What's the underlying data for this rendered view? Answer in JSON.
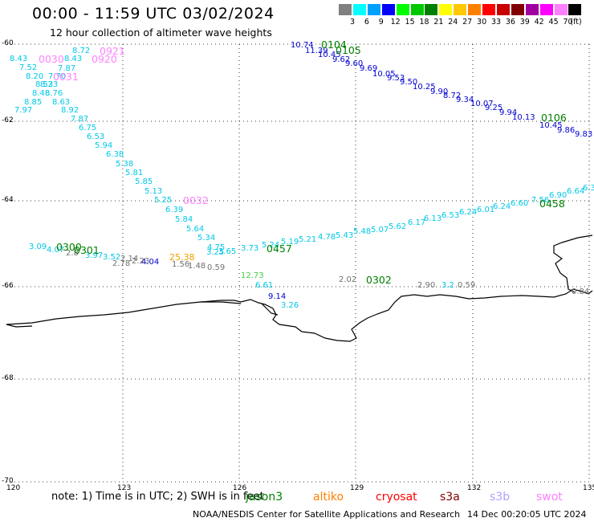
{
  "title": "00:00 - 11:59 UTC 03/02/2024",
  "subtitle": "12 hour collection of altimeter wave heights",
  "colorbar": {
    "unit": "(ft)",
    "levels": [
      {
        "label": "3",
        "color": "#808080"
      },
      {
        "label": "6",
        "color": "#00ffff"
      },
      {
        "label": "9",
        "color": "#00a0ff"
      },
      {
        "label": "12",
        "color": "#0000ff"
      },
      {
        "label": "15",
        "color": "#00ff00"
      },
      {
        "label": "18",
        "color": "#00c800"
      },
      {
        "label": "21",
        "color": "#008000"
      },
      {
        "label": "24",
        "color": "#ffff00"
      },
      {
        "label": "27",
        "color": "#ffc800"
      },
      {
        "label": "30",
        "color": "#ff8000"
      },
      {
        "label": "33",
        "color": "#ff0000"
      },
      {
        "label": "36",
        "color": "#c80000"
      },
      {
        "label": "39",
        "color": "#800000"
      },
      {
        "label": "42",
        "color": "#a000a0"
      },
      {
        "label": "45",
        "color": "#ff00ff"
      },
      {
        "label": "70",
        "color": "#ff80ff"
      },
      {
        "label": "",
        "color": "#000000"
      }
    ]
  },
  "axes": {
    "lat_labels": [
      "-60",
      "-62",
      "-64",
      "-66",
      "-68",
      "-70"
    ],
    "lon_labels": [
      "120",
      "123",
      "126",
      "129",
      "132",
      "135"
    ]
  },
  "tracks": [
    {
      "time": "0030",
      "color": "#ff80ff"
    },
    {
      "time": "0031",
      "color": "#ff80ff"
    },
    {
      "time": "0032",
      "color": "#ff80ff"
    },
    {
      "time": "0920",
      "color": "#ff80ff"
    },
    {
      "time": "0921",
      "color": "#ff80ff"
    },
    {
      "time": "0104",
      "color": "#008000"
    },
    {
      "time": "0105",
      "color": "#008000"
    },
    {
      "time": "0106",
      "color": "#008000"
    },
    {
      "time": "0300",
      "color": "#008000"
    },
    {
      "time": "0301",
      "color": "#008000"
    },
    {
      "time": "0302",
      "color": "#008000"
    },
    {
      "time": "0457",
      "color": "#008000"
    },
    {
      "time": "0458",
      "color": "#008000"
    }
  ],
  "labels_cyan": [
    "8.43",
    "7.52",
    "8.20",
    "8.53",
    "8.48",
    "8.85",
    "7.97",
    "8.72",
    "8.43",
    "7.87",
    "7.70",
    "8.23",
    "8.76",
    "8.63",
    "8.92",
    "7.87",
    "6.75",
    "6.53",
    "5.94",
    "6.38",
    "5.38",
    "5.81",
    "5.85",
    "5.13",
    "5.25",
    "6.39",
    "5.84",
    "5.64",
    "5.34",
    "4.75",
    "3.25",
    "3.65",
    "3.73",
    "5.24",
    "5.19",
    "5.21",
    "4.78",
    "5.43",
    "5.48",
    "5.07",
    "5.62",
    "6.17",
    "6.13",
    "6.53",
    "6.24",
    "6.01",
    "6.24",
    "6.60",
    "7.56",
    "6.90",
    "6.64",
    "6.3",
    "3.09",
    "4.07",
    "3.97",
    "3.52",
    "6.61",
    "3.26",
    "3.2"
  ],
  "labels_blue": [
    "10.74",
    "11.39",
    "10.45",
    "9.62",
    "9.60",
    "9.69",
    "10.05",
    "9.53",
    "9.50",
    "10.25",
    "9.90",
    "8.72",
    "9.34",
    "10.07",
    "9.25",
    "9.94",
    "10.13",
    "10.45",
    "9.86",
    "9.83",
    "4.04",
    "9.14"
  ],
  "labels_gray": [
    "2.8",
    "2.78",
    "2.14",
    "2.23",
    "1.56",
    "1.48",
    "0.59",
    "2.02",
    "2.90",
    "0.59",
    "0.84"
  ],
  "labels_orange": [
    "25.38"
  ],
  "labels_green": [
    "12.73"
  ],
  "note": "note:  1) Time is in UTC; 2) SWH is in feet",
  "satellites": [
    {
      "name": "jason3",
      "color": "#008000"
    },
    {
      "name": "altiko",
      "color": "#ff8000"
    },
    {
      "name": "cryosat",
      "color": "#ff0000"
    },
    {
      "name": "s3a",
      "color": "#800000"
    },
    {
      "name": "s3b",
      "color": "#b0a0ff"
    },
    {
      "name": "swot",
      "color": "#ff80ff"
    }
  ],
  "credit": "NOAA/NESDIS Center for Satellite Applications and Research",
  "timestamp": "14 Dec 00:20:05 UTC 2024"
}
